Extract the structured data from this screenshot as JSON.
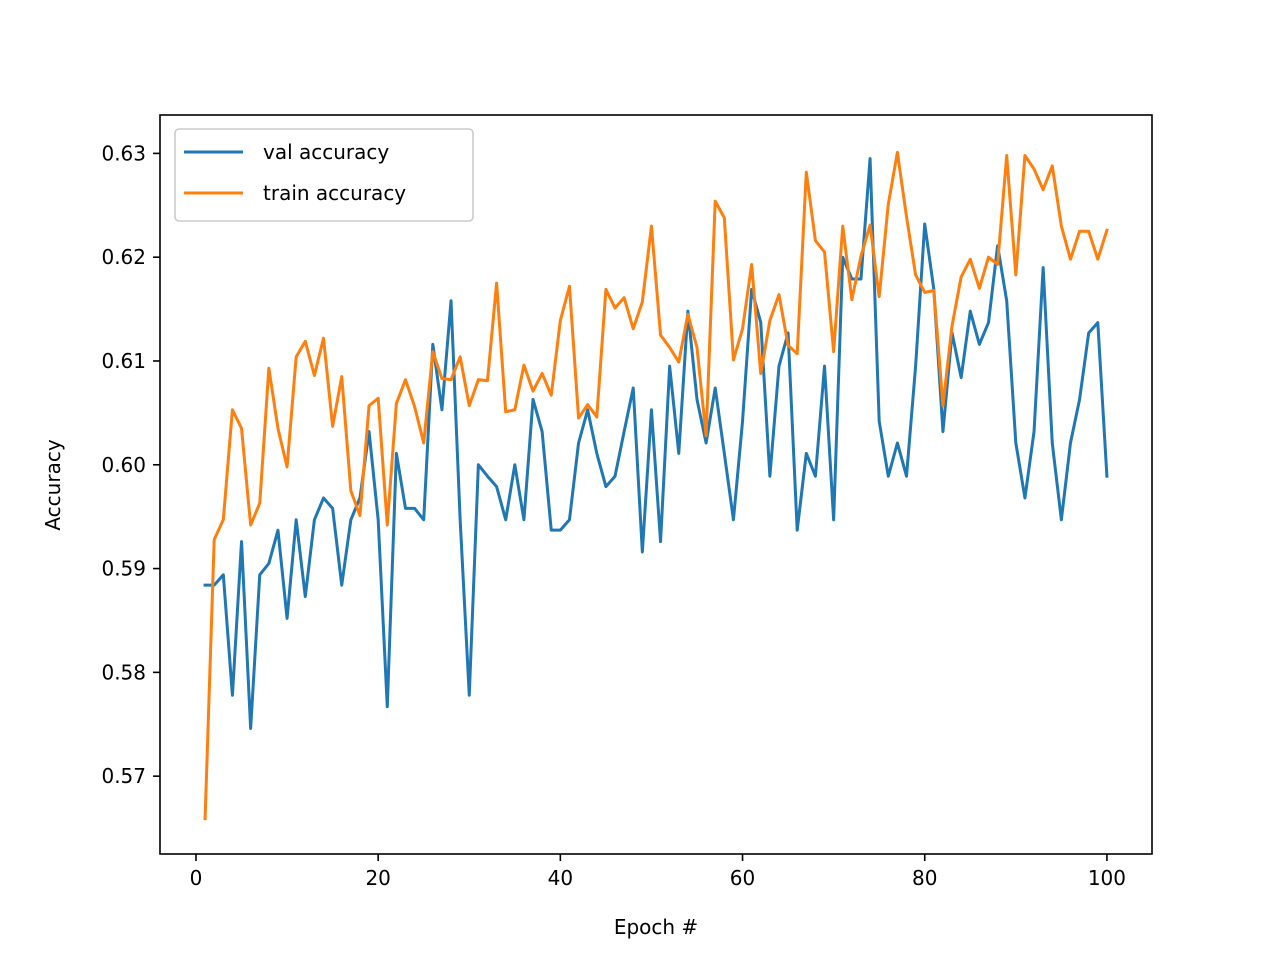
{
  "chart_data": {
    "type": "line",
    "title": "",
    "xlabel": "Epoch #",
    "ylabel": "Accuracy",
    "xlim": [
      -3.95,
      104.95
    ],
    "ylim": [
      0.5625,
      0.6337
    ],
    "xticks": [
      0,
      20,
      40,
      60,
      80,
      100
    ],
    "xtick_labels": [
      "0",
      "20",
      "40",
      "60",
      "80",
      "100"
    ],
    "yticks": [
      0.57,
      0.58,
      0.59,
      0.6,
      0.61,
      0.62,
      0.63
    ],
    "ytick_labels": [
      "0.57",
      "0.58",
      "0.59",
      "0.60",
      "0.61",
      "0.62",
      "0.63"
    ],
    "grid": false,
    "legend_position": "top-left",
    "x": [
      1,
      2,
      3,
      4,
      5,
      6,
      7,
      8,
      9,
      10,
      11,
      12,
      13,
      14,
      15,
      16,
      17,
      18,
      19,
      20,
      21,
      22,
      23,
      24,
      25,
      26,
      27,
      28,
      29,
      30,
      31,
      32,
      33,
      34,
      35,
      36,
      37,
      38,
      39,
      40,
      41,
      42,
      43,
      44,
      45,
      46,
      47,
      48,
      49,
      50,
      51,
      52,
      53,
      54,
      55,
      56,
      57,
      58,
      59,
      60,
      61,
      62,
      63,
      64,
      65,
      66,
      67,
      68,
      69,
      70,
      71,
      72,
      73,
      74,
      75,
      76,
      77,
      78,
      79,
      80,
      81,
      82,
      83,
      84,
      85,
      86,
      87,
      88,
      89,
      90,
      91,
      92,
      93,
      94,
      95,
      96,
      97,
      98,
      99,
      100
    ],
    "series": [
      {
        "name": "val accuracy",
        "color": "#1f77b4",
        "values": [
          0.5884,
          0.5884,
          0.5894,
          0.5778,
          0.5926,
          0.5746,
          0.5894,
          0.5905,
          0.5937,
          0.5852,
          0.5947,
          0.5873,
          0.5947,
          0.5968,
          0.5958,
          0.5884,
          0.5947,
          0.5968,
          0.6032,
          0.5947,
          0.5767,
          0.6011,
          0.5958,
          0.5958,
          0.5947,
          0.6116,
          0.6053,
          0.6158,
          0.5947,
          0.5778,
          0.6,
          0.5989,
          0.5979,
          0.5947,
          0.6,
          0.5947,
          0.6063,
          0.6032,
          0.5937,
          0.5937,
          0.5947,
          0.6021,
          0.6053,
          0.6011,
          0.5979,
          0.5989,
          0.6032,
          0.6074,
          0.5916,
          0.6053,
          0.5926,
          0.6095,
          0.6011,
          0.6148,
          0.6063,
          0.6021,
          0.6074,
          0.6011,
          0.5947,
          0.6042,
          0.6169,
          0.6137,
          0.5989,
          0.6095,
          0.6127,
          0.5937,
          0.6011,
          0.5989,
          0.6095,
          0.5947,
          0.62,
          0.6179,
          0.6179,
          0.6295,
          0.6042,
          0.5989,
          0.6021,
          0.5989,
          0.6095,
          0.6232,
          0.6169,
          0.6032,
          0.6127,
          0.6084,
          0.6148,
          0.6116,
          0.6137,
          0.6211,
          0.6158,
          0.6021,
          0.5968,
          0.6032,
          0.619,
          0.6021,
          0.5947,
          0.6021,
          0.6063,
          0.6127,
          0.6137,
          0.5989
        ]
      },
      {
        "name": "train accuracy",
        "color": "#ff7f0e",
        "values": [
          0.5659,
          0.5928,
          0.5947,
          0.6053,
          0.6035,
          0.5942,
          0.5963,
          0.6093,
          0.6035,
          0.5998,
          0.6104,
          0.6119,
          0.6086,
          0.6122,
          0.6037,
          0.6085,
          0.5975,
          0.5951,
          0.6057,
          0.6064,
          0.5942,
          0.6059,
          0.6082,
          0.6056,
          0.6021,
          0.6109,
          0.6083,
          0.6082,
          0.6104,
          0.6057,
          0.6082,
          0.6081,
          0.6175,
          0.6051,
          0.6053,
          0.6096,
          0.6071,
          0.6088,
          0.6067,
          0.6139,
          0.6172,
          0.6045,
          0.6058,
          0.6046,
          0.6169,
          0.6151,
          0.6161,
          0.6131,
          0.6157,
          0.623,
          0.6125,
          0.6113,
          0.6099,
          0.6145,
          0.6113,
          0.6028,
          0.6254,
          0.6238,
          0.6101,
          0.6131,
          0.6193,
          0.6088,
          0.6139,
          0.6164,
          0.6115,
          0.6107,
          0.6282,
          0.6216,
          0.6205,
          0.6109,
          0.623,
          0.6159,
          0.6201,
          0.6231,
          0.6162,
          0.6251,
          0.6301,
          0.6239,
          0.6183,
          0.6166,
          0.6168,
          0.6057,
          0.6134,
          0.6181,
          0.6198,
          0.617,
          0.62,
          0.6193,
          0.6298,
          0.6183,
          0.6298,
          0.6285,
          0.6265,
          0.6288,
          0.623,
          0.6198,
          0.6225,
          0.6225,
          0.6198,
          0.6226
        ]
      }
    ]
  }
}
